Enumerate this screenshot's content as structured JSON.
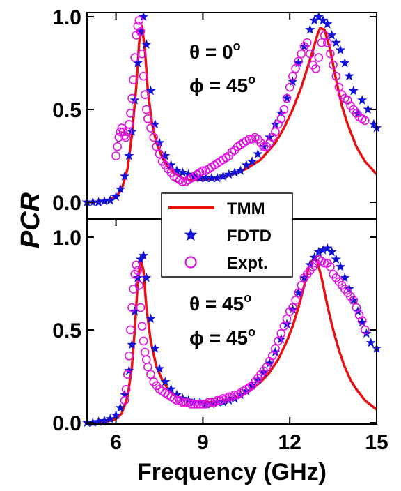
{
  "chart_data": {
    "type": "line",
    "xlabel": "Frequency (GHz)",
    "ylabel": "PCR",
    "xlim": [
      5,
      15
    ],
    "xticks": [
      "6",
      "9",
      "12",
      "15"
    ],
    "colors": {
      "TMM": "#e81010",
      "FDTD": "#1212d8",
      "Expt": "#e010e0"
    },
    "legend": {
      "placement": "center",
      "entries": [
        {
          "key": "TMM",
          "label": "TMM",
          "marker": "line"
        },
        {
          "key": "FDTD",
          "label": "FDTD",
          "marker": "star"
        },
        {
          "key": "Expt",
          "label": "Expt.",
          "marker": "open-circle"
        }
      ]
    },
    "panels": [
      {
        "id": "top",
        "ylim": [
          0,
          1.0
        ],
        "yticks": [
          "0.0",
          "0.5",
          "1.0"
        ],
        "annotations": [
          {
            "sym": "θ = 0",
            "sup": "o"
          },
          {
            "sym": "ϕ = 45",
            "sup": "o"
          }
        ],
        "series": [
          {
            "key": "TMM",
            "name": "TMM",
            "style": "line",
            "x": [
              5.0,
              5.5,
              5.8,
              6.0,
              6.2,
              6.4,
              6.55,
              6.7,
              6.8,
              6.9,
              7.0,
              7.1,
              7.25,
              7.4,
              7.6,
              7.8,
              8.0,
              8.3,
              8.6,
              9.0,
              9.5,
              10.0,
              10.5,
              11.0,
              11.5,
              11.8,
              12.1,
              12.4,
              12.6,
              12.8,
              12.95,
              13.05,
              13.2,
              13.4,
              13.6,
              13.8,
              14.0,
              14.3,
              14.6,
              15.0
            ],
            "y": [
              0.0,
              0.005,
              0.015,
              0.03,
              0.07,
              0.18,
              0.36,
              0.62,
              0.86,
              0.95,
              0.82,
              0.6,
              0.42,
              0.32,
              0.24,
              0.19,
              0.16,
              0.13,
              0.12,
              0.12,
              0.13,
              0.15,
              0.18,
              0.23,
              0.32,
              0.4,
              0.5,
              0.62,
              0.72,
              0.82,
              0.9,
              0.94,
              0.93,
              0.82,
              0.66,
              0.52,
              0.42,
              0.3,
              0.22,
              0.15
            ]
          },
          {
            "key": "FDTD",
            "name": "FDTD",
            "style": "star",
            "x": [
              5.0,
              5.2,
              5.4,
              5.6,
              5.8,
              6.0,
              6.15,
              6.3,
              6.45,
              6.55,
              6.65,
              6.75,
              6.85,
              6.95,
              7.05,
              7.2,
              7.35,
              7.5,
              7.7,
              7.9,
              8.1,
              8.3,
              8.5,
              8.7,
              8.9,
              9.1,
              9.3,
              9.5,
              9.7,
              9.9,
              10.1,
              10.3,
              10.5,
              10.7,
              10.9,
              11.1,
              11.3,
              11.5,
              11.7,
              11.9,
              12.1,
              12.3,
              12.5,
              12.7,
              12.85,
              13.0,
              13.15,
              13.3,
              13.45,
              13.6,
              13.75,
              13.9,
              14.05,
              14.2,
              14.35,
              14.5,
              14.7,
              14.9,
              15.0
            ],
            "y": [
              0.0,
              0.0,
              0.0,
              0.005,
              0.01,
              0.03,
              0.07,
              0.14,
              0.25,
              0.38,
              0.55,
              0.75,
              0.92,
              1.0,
              0.85,
              0.6,
              0.42,
              0.32,
              0.25,
              0.2,
              0.17,
              0.16,
              0.15,
              0.14,
              0.13,
              0.13,
              0.13,
              0.13,
              0.14,
              0.15,
              0.16,
              0.17,
              0.2,
              0.22,
              0.26,
              0.3,
              0.35,
              0.42,
              0.48,
              0.56,
              0.65,
              0.75,
              0.84,
              0.93,
              0.98,
              1.0,
              0.98,
              0.96,
              0.9,
              0.86,
              0.82,
              0.75,
              0.68,
              0.6,
              0.48,
              0.55,
              0.5,
              0.42,
              0.4
            ]
          },
          {
            "key": "Expt",
            "name": "Expt.",
            "style": "open-circle",
            "x": [
              6.0,
              6.05,
              6.1,
              6.15,
              6.2,
              6.25,
              6.3,
              6.35,
              6.4,
              6.45,
              6.5,
              6.55,
              6.6,
              6.65,
              6.7,
              6.75,
              6.8,
              6.85,
              6.9,
              6.95,
              7.0,
              7.05,
              7.1,
              7.2,
              7.3,
              7.4,
              7.5,
              7.6,
              7.7,
              7.8,
              7.9,
              8.0,
              8.1,
              8.2,
              8.3,
              8.4,
              8.5,
              8.6,
              8.7,
              8.8,
              8.9,
              9.0,
              9.1,
              9.2,
              9.3,
              9.4,
              9.5,
              9.6,
              9.7,
              9.8,
              9.9,
              10.0,
              10.1,
              10.2,
              10.3,
              10.4,
              10.5,
              10.6,
              10.7,
              10.8,
              10.9,
              11.0,
              11.1,
              11.2,
              11.3,
              11.4,
              11.5,
              11.6,
              11.7,
              11.8,
              11.9,
              12.0,
              12.1,
              12.2,
              12.3,
              12.4,
              12.5,
              12.6,
              12.7,
              12.8,
              12.9,
              13.0,
              13.1,
              13.2,
              13.3,
              13.4,
              13.5,
              13.6,
              13.7,
              13.8,
              13.9,
              14.0,
              14.1,
              14.2,
              14.3,
              14.4,
              14.5,
              14.6
            ],
            "y": [
              0.25,
              0.3,
              0.35,
              0.38,
              0.4,
              0.38,
              0.36,
              0.35,
              0.38,
              0.42,
              0.48,
              0.56,
              0.66,
              0.78,
              0.9,
              0.95,
              0.98,
              0.92,
              0.8,
              0.68,
              0.58,
              0.5,
              0.45,
              0.4,
              0.35,
              0.3,
              0.26,
              0.22,
              0.2,
              0.18,
              0.16,
              0.14,
              0.13,
              0.12,
              0.11,
              0.11,
              0.12,
              0.13,
              0.14,
              0.15,
              0.16,
              0.17,
              0.17,
              0.18,
              0.19,
              0.2,
              0.21,
              0.22,
              0.23,
              0.24,
              0.25,
              0.27,
              0.28,
              0.3,
              0.31,
              0.32,
              0.33,
              0.34,
              0.34,
              0.35,
              0.34,
              0.32,
              0.3,
              0.3,
              0.32,
              0.35,
              0.38,
              0.42,
              0.45,
              0.5,
              0.56,
              0.62,
              0.68,
              0.72,
              0.76,
              0.8,
              0.84,
              0.86,
              0.8,
              0.74,
              0.72,
              0.78,
              0.86,
              0.9,
              0.86,
              0.8,
              0.74,
              0.68,
              0.62,
              0.58,
              0.56,
              0.55,
              0.52,
              0.5,
              0.48,
              0.46,
              0.45,
              0.44
            ]
          }
        ]
      },
      {
        "id": "bottom",
        "ylim": [
          0,
          1.0
        ],
        "yticks": [
          "0.0",
          "0.5",
          "1.0"
        ],
        "annotations": [
          {
            "sym": "θ = 45",
            "sup": "o"
          },
          {
            "sym": "ϕ = 45",
            "sup": "o"
          }
        ],
        "series": [
          {
            "key": "TMM",
            "name": "TMM",
            "style": "line",
            "x": [
              5.0,
              5.5,
              5.8,
              6.0,
              6.2,
              6.4,
              6.55,
              6.65,
              6.75,
              6.85,
              6.95,
              7.05,
              7.2,
              7.4,
              7.6,
              7.8,
              8.0,
              8.3,
              8.6,
              9.0,
              9.4,
              9.8,
              10.2,
              10.6,
              11.0,
              11.3,
              11.6,
              11.9,
              12.1,
              12.3,
              12.5,
              12.65,
              12.75,
              12.85,
              12.95,
              13.1,
              13.3,
              13.5,
              13.7,
              13.9,
              14.1,
              14.3,
              14.6,
              15.0
            ],
            "y": [
              0.0,
              0.005,
              0.01,
              0.02,
              0.05,
              0.14,
              0.3,
              0.5,
              0.75,
              0.88,
              0.82,
              0.62,
              0.44,
              0.3,
              0.23,
              0.18,
              0.15,
              0.13,
              0.12,
              0.11,
              0.11,
              0.12,
              0.14,
              0.17,
              0.22,
              0.27,
              0.34,
              0.44,
              0.52,
              0.62,
              0.74,
              0.83,
              0.87,
              0.88,
              0.87,
              0.78,
              0.63,
              0.5,
              0.39,
              0.3,
              0.23,
              0.18,
              0.12,
              0.07
            ]
          },
          {
            "key": "FDTD",
            "name": "FDTD",
            "style": "star",
            "x": [
              5.0,
              5.2,
              5.4,
              5.6,
              5.8,
              6.0,
              6.15,
              6.3,
              6.45,
              6.55,
              6.65,
              6.75,
              6.85,
              6.95,
              7.05,
              7.2,
              7.35,
              7.5,
              7.7,
              7.9,
              8.1,
              8.3,
              8.5,
              8.7,
              8.9,
              9.1,
              9.3,
              9.5,
              9.7,
              9.9,
              10.1,
              10.3,
              10.5,
              10.7,
              10.9,
              11.1,
              11.3,
              11.5,
              11.7,
              11.9,
              12.1,
              12.3,
              12.5,
              12.7,
              12.85,
              13.0,
              13.15,
              13.3,
              13.45,
              13.6,
              13.75,
              13.9,
              14.05,
              14.2,
              14.35,
              14.5,
              14.65,
              14.8,
              15.0
            ],
            "y": [
              0.0,
              0.0,
              0.005,
              0.01,
              0.02,
              0.04,
              0.08,
              0.15,
              0.28,
              0.42,
              0.6,
              0.78,
              0.88,
              0.9,
              0.78,
              0.56,
              0.4,
              0.29,
              0.22,
              0.18,
              0.15,
              0.13,
              0.12,
              0.11,
              0.11,
              0.1,
              0.1,
              0.11,
              0.11,
              0.12,
              0.13,
              0.15,
              0.17,
              0.2,
              0.23,
              0.27,
              0.32,
              0.38,
              0.45,
              0.53,
              0.61,
              0.7,
              0.78,
              0.85,
              0.89,
              0.92,
              0.93,
              0.94,
              0.92,
              0.88,
              0.84,
              0.78,
              0.72,
              0.66,
              0.6,
              0.54,
              0.48,
              0.43,
              0.4
            ]
          },
          {
            "key": "Expt",
            "name": "Expt.",
            "style": "open-circle",
            "x": [
              6.3,
              6.35,
              6.4,
              6.45,
              6.5,
              6.55,
              6.6,
              6.65,
              6.7,
              6.75,
              6.8,
              6.85,
              6.9,
              6.95,
              7.0,
              7.05,
              7.1,
              7.2,
              7.3,
              7.4,
              7.5,
              7.6,
              7.7,
              7.8,
              7.9,
              8.0,
              8.1,
              8.2,
              8.3,
              8.4,
              8.5,
              8.6,
              8.7,
              8.8,
              8.9,
              9.0,
              9.1,
              9.2,
              9.3,
              9.4,
              9.5,
              9.6,
              9.7,
              9.8,
              9.9,
              10.0,
              10.1,
              10.2,
              10.3,
              10.4,
              10.5,
              10.6,
              10.7,
              10.8,
              10.9,
              11.0,
              11.1,
              11.2,
              11.3,
              11.4,
              11.5,
              11.6,
              11.7,
              11.8,
              11.9,
              12.0,
              12.1,
              12.2,
              12.3,
              12.4,
              12.5,
              12.6,
              12.7,
              12.8,
              12.9,
              13.0,
              13.1,
              13.2,
              13.3,
              13.4,
              13.5,
              13.6,
              13.7,
              13.8,
              13.9,
              14.0,
              14.1,
              14.2,
              14.3,
              14.4,
              14.5,
              14.6
            ],
            "y": [
              0.12,
              0.18,
              0.26,
              0.36,
              0.5,
              0.62,
              0.72,
              0.8,
              0.85,
              0.82,
              0.74,
              0.62,
              0.52,
              0.44,
              0.38,
              0.34,
              0.3,
              0.26,
              0.22,
              0.2,
              0.18,
              0.17,
              0.16,
              0.15,
              0.14,
              0.13,
              0.12,
              0.12,
              0.11,
              0.11,
              0.11,
              0.1,
              0.1,
              0.1,
              0.1,
              0.1,
              0.1,
              0.11,
              0.11,
              0.11,
              0.12,
              0.12,
              0.13,
              0.13,
              0.14,
              0.14,
              0.15,
              0.15,
              0.16,
              0.17,
              0.18,
              0.19,
              0.2,
              0.22,
              0.24,
              0.26,
              0.28,
              0.3,
              0.33,
              0.36,
              0.4,
              0.44,
              0.48,
              0.52,
              0.56,
              0.6,
              0.62,
              0.66,
              0.7,
              0.74,
              0.78,
              0.8,
              0.82,
              0.84,
              0.86,
              0.88,
              0.87,
              0.86,
              0.86,
              0.84,
              0.8,
              0.78,
              0.76,
              0.74,
              0.72,
              0.7,
              0.68,
              0.66,
              0.62,
              0.58,
              0.55,
              0.5
            ]
          }
        ]
      }
    ]
  }
}
